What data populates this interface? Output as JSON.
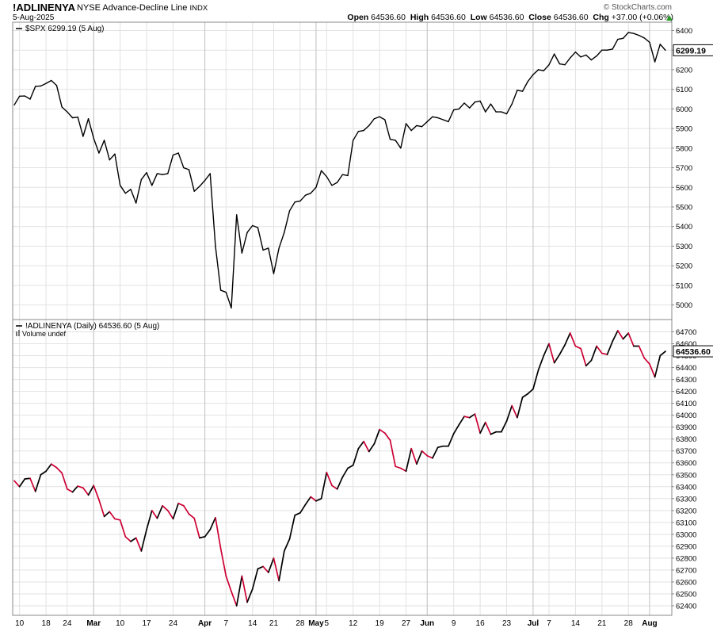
{
  "header": {
    "symbol": "!ADLINENYA",
    "name": "NYSE Advance-Decline Line",
    "exchange": "INDX",
    "date": "5-Aug-2025",
    "brand": "© StockCharts.com",
    "quote": {
      "open_label": "Open",
      "open": "64536.60",
      "high_label": "High",
      "high": "64536.60",
      "low_label": "Low",
      "low": "64536.60",
      "close_label": "Close",
      "close": "64536.60",
      "chg_label": "Chg",
      "chg": "+37.00 (+0.06%)"
    }
  },
  "colors": {
    "line": "#000000",
    "decline": "#cc0033",
    "grid": "#e2e2e2",
    "border": "#888888"
  },
  "x_axis": {
    "ticks": [
      {
        "label": "10",
        "i": 1
      },
      {
        "label": "18",
        "i": 6
      },
      {
        "label": "24",
        "i": 10
      },
      {
        "label": "Mar",
        "i": 15,
        "bold": true
      },
      {
        "label": "10",
        "i": 20
      },
      {
        "label": "17",
        "i": 25
      },
      {
        "label": "24",
        "i": 30
      },
      {
        "label": "Apr",
        "i": 36,
        "bold": true
      },
      {
        "label": "7",
        "i": 40
      },
      {
        "label": "14",
        "i": 45
      },
      {
        "label": "21",
        "i": 49
      },
      {
        "label": "28",
        "i": 54
      },
      {
        "label": "May",
        "i": 57,
        "bold": true
      },
      {
        "label": "5",
        "i": 59
      },
      {
        "label": "12",
        "i": 64
      },
      {
        "label": "19",
        "i": 69
      },
      {
        "label": "27",
        "i": 74
      },
      {
        "label": "Jun",
        "i": 78,
        "bold": true
      },
      {
        "label": "9",
        "i": 83
      },
      {
        "label": "16",
        "i": 88
      },
      {
        "label": "23",
        "i": 93
      },
      {
        "label": "Jul",
        "i": 98,
        "bold": true
      },
      {
        "label": "7",
        "i": 101
      },
      {
        "label": "14",
        "i": 106
      },
      {
        "label": "21",
        "i": 111
      },
      {
        "label": "28",
        "i": 116
      },
      {
        "label": "Aug",
        "i": 120,
        "bold": true
      }
    ],
    "month_lines": [
      15,
      36,
      57,
      78,
      98,
      120
    ]
  },
  "chart_data": [
    {
      "type": "line",
      "series": [
        {
          "name": "$SPX"
        }
      ],
      "legend": "$SPX 6299.19 (5 Aug)",
      "last_value": 6299.19,
      "last_label": "6299.19",
      "ylim": [
        4950,
        6410
      ],
      "yticks": [
        5000,
        5100,
        5200,
        5300,
        5400,
        5500,
        5600,
        5700,
        5800,
        5900,
        6000,
        6100,
        6200,
        6300,
        6400
      ],
      "values": [
        6020,
        6065,
        6066,
        6050,
        6115,
        6117,
        6130,
        6145,
        6120,
        6010,
        5985,
        5955,
        5958,
        5860,
        5950,
        5850,
        5775,
        5840,
        5740,
        5770,
        5610,
        5570,
        5590,
        5520,
        5640,
        5675,
        5610,
        5670,
        5665,
        5670,
        5765,
        5775,
        5700,
        5690,
        5580,
        5605,
        5635,
        5670,
        5300,
        5075,
        5065,
        4985,
        5460,
        5265,
        5370,
        5405,
        5395,
        5280,
        5290,
        5160,
        5290,
        5370,
        5480,
        5525,
        5530,
        5560,
        5570,
        5600,
        5685,
        5655,
        5610,
        5625,
        5665,
        5660,
        5840,
        5885,
        5890,
        5915,
        5950,
        5960,
        5945,
        5845,
        5840,
        5800,
        5925,
        5890,
        5915,
        5910,
        5935,
        5960,
        5955,
        5945,
        5935,
        5995,
        6000,
        6030,
        6005,
        6035,
        6040,
        5985,
        6025,
        5985,
        5985,
        5975,
        6025,
        6095,
        6090,
        6140,
        6175,
        6200,
        6195,
        6225,
        6280,
        6230,
        6225,
        6260,
        6290,
        6265,
        6275,
        6250,
        6270,
        6300,
        6300,
        6305,
        6355,
        6360,
        6390,
        6385,
        6375,
        6362,
        6340,
        6240,
        6330,
        6299.19
      ]
    },
    {
      "type": "line",
      "series": [
        {
          "name": "!ADLINENYA (Daily)"
        }
      ],
      "legend": "!ADLINENYA (Daily) 64536.60 (5 Aug)",
      "sublegend": "Volume undef",
      "last_value": 64536.6,
      "last_label": "64536.60",
      "ylim": [
        62360,
        64750
      ],
      "yticks": [
        62400,
        62500,
        62600,
        62700,
        62800,
        62900,
        63000,
        63100,
        63200,
        63300,
        63400,
        63500,
        63600,
        63700,
        63800,
        63900,
        64000,
        64100,
        64200,
        64300,
        64400,
        64500,
        64600,
        64700
      ],
      "values": [
        63450,
        63400,
        63465,
        63470,
        63360,
        63500,
        63530,
        63590,
        63560,
        63515,
        63380,
        63355,
        63405,
        63390,
        63330,
        63410,
        63290,
        63150,
        63190,
        63130,
        63120,
        62980,
        62940,
        62970,
        62860,
        63040,
        63200,
        63135,
        63240,
        63200,
        63130,
        63260,
        63240,
        63170,
        63135,
        62970,
        62980,
        63040,
        63140,
        62880,
        62650,
        62520,
        62400,
        62650,
        62430,
        62540,
        62710,
        62730,
        62680,
        62800,
        62610,
        62860,
        62960,
        63160,
        63180,
        63250,
        63315,
        63280,
        63300,
        63520,
        63410,
        63380,
        63480,
        63555,
        63580,
        63720,
        63780,
        63695,
        63760,
        63880,
        63850,
        63790,
        63570,
        63555,
        63530,
        63720,
        63590,
        63700,
        63660,
        63640,
        63730,
        63740,
        63740,
        63845,
        63920,
        63990,
        63980,
        64010,
        63850,
        63940,
        63840,
        63860,
        63860,
        63950,
        64080,
        63980,
        64150,
        64180,
        64220,
        64380,
        64500,
        64600,
        64440,
        64510,
        64590,
        64690,
        64580,
        64560,
        64415,
        64460,
        64580,
        64520,
        64510,
        64620,
        64710,
        64640,
        64690,
        64580,
        64580,
        64480,
        64430,
        64320,
        64500,
        64536.6
      ]
    }
  ]
}
